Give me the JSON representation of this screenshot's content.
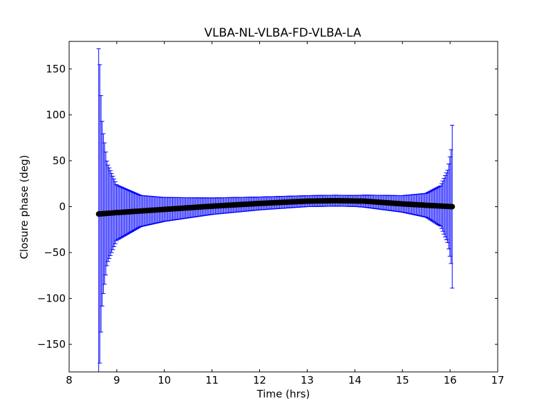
{
  "chart_data": {
    "type": "scatter",
    "title": "VLBA-NL-VLBA-FD-VLBA-LA",
    "xlabel": "Time (hrs)",
    "ylabel": "Closure phase (deg)",
    "xlim": [
      8,
      17
    ],
    "ylim": [
      -180,
      180
    ],
    "xticks": [
      "8",
      "9",
      "10",
      "11",
      "12",
      "13",
      "14",
      "15",
      "16",
      "17"
    ],
    "yticks": [
      "−150",
      "−100",
      "−50",
      "0",
      "50",
      "100",
      "150"
    ],
    "grid": false,
    "series": [
      {
        "x_range": [
          8.62,
          16.05
        ],
        "x_step": 0.025,
        "phase_at_x": {
          "x": [
            8.62,
            9.0,
            10.0,
            11.0,
            12.0,
            13.0,
            13.6,
            14.2,
            15.0,
            15.5,
            16.05
          ],
          "y": [
            -8,
            -6.5,
            -3,
            0.5,
            3.5,
            6,
            6.5,
            6,
            3,
            1.5,
            0
          ]
        },
        "error_at_x": {
          "x": [
            8.62,
            8.64,
            8.66,
            8.7,
            8.8,
            9.0,
            9.5,
            10.0,
            11.0,
            12.0,
            13.0,
            14.0,
            15.0,
            15.5,
            15.8,
            15.95,
            16.02,
            16.05
          ],
          "y": [
            180,
            170,
            140,
            95,
            55,
            30,
            17,
            13,
            9,
            7,
            6,
            6,
            9,
            13,
            22,
            40,
            62,
            94
          ]
        },
        "marker_color": "#000000",
        "errorbar_color": "#0000ff"
      }
    ]
  }
}
